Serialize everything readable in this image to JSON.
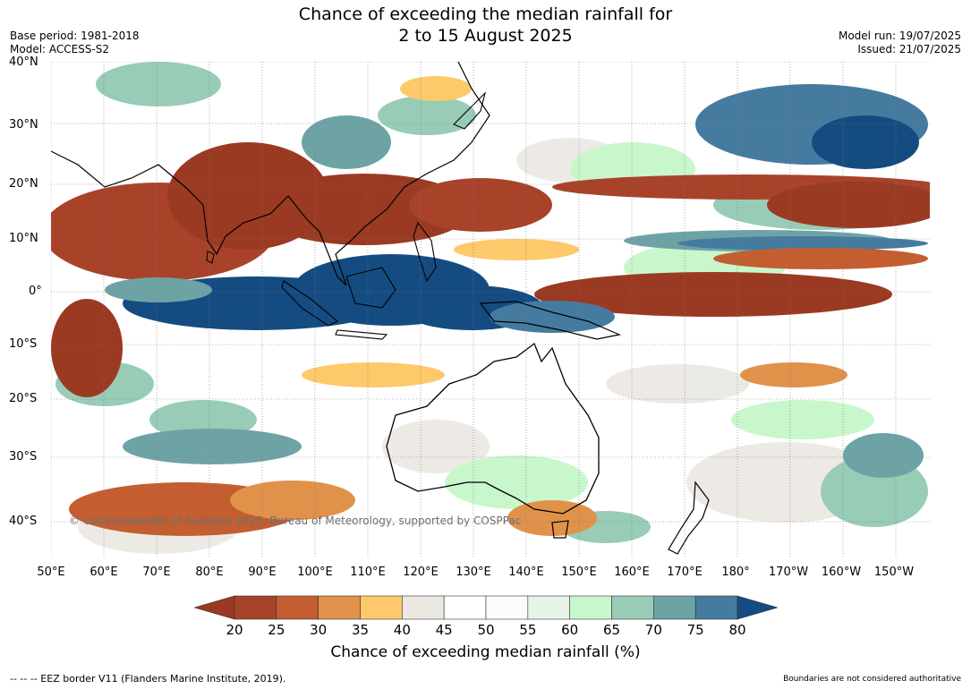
{
  "header": {
    "title_line1": "Chance of exceeding the median rainfall for",
    "title_line2": "2 to 15 August 2025",
    "base_period": "Base period: 1981-2018",
    "model": "Model: ACCESS-S2",
    "model_run": "Model run: 19/07/2025",
    "issued": "Issued: 21/07/2025"
  },
  "map": {
    "copyright": "© Commonwealth of Australia 2025, Bureau of Meteorology, supported by COSPPac",
    "lat_labels": [
      "40°N",
      "30°N",
      "20°N",
      "10°N",
      "0°",
      "10°S",
      "20°S",
      "30°S",
      "40°S"
    ],
    "lon_labels": [
      "50°E",
      "60°E",
      "70°E",
      "80°E",
      "90°E",
      "100°E",
      "110°E",
      "120°E",
      "130°E",
      "140°E",
      "150°E",
      "160°E",
      "170°E",
      "180°",
      "170°W",
      "160°W",
      "150°W"
    ]
  },
  "colorbar": {
    "ticks": [
      "20",
      "25",
      "30",
      "35",
      "40",
      "45",
      "50",
      "55",
      "60",
      "65",
      "70",
      "75",
      "80"
    ],
    "label": "Chance of exceeding median rainfall (%)",
    "colors": [
      "#9b3a22",
      "#a8432a",
      "#c45e30",
      "#e0924a",
      "#fdc96a",
      "#ebe8e2",
      "#ffffff",
      "#fbfdfb",
      "#e6f4e8",
      "#c9f7cc",
      "#98ccb7",
      "#6ea3a6",
      "#467ba0",
      "#144c82"
    ]
  },
  "footer": {
    "eez": "--  --  -- EEZ border V11 (Flanders Marine Institute, 2019).",
    "disclaimer": "Boundaries are not considered authoritative"
  }
}
